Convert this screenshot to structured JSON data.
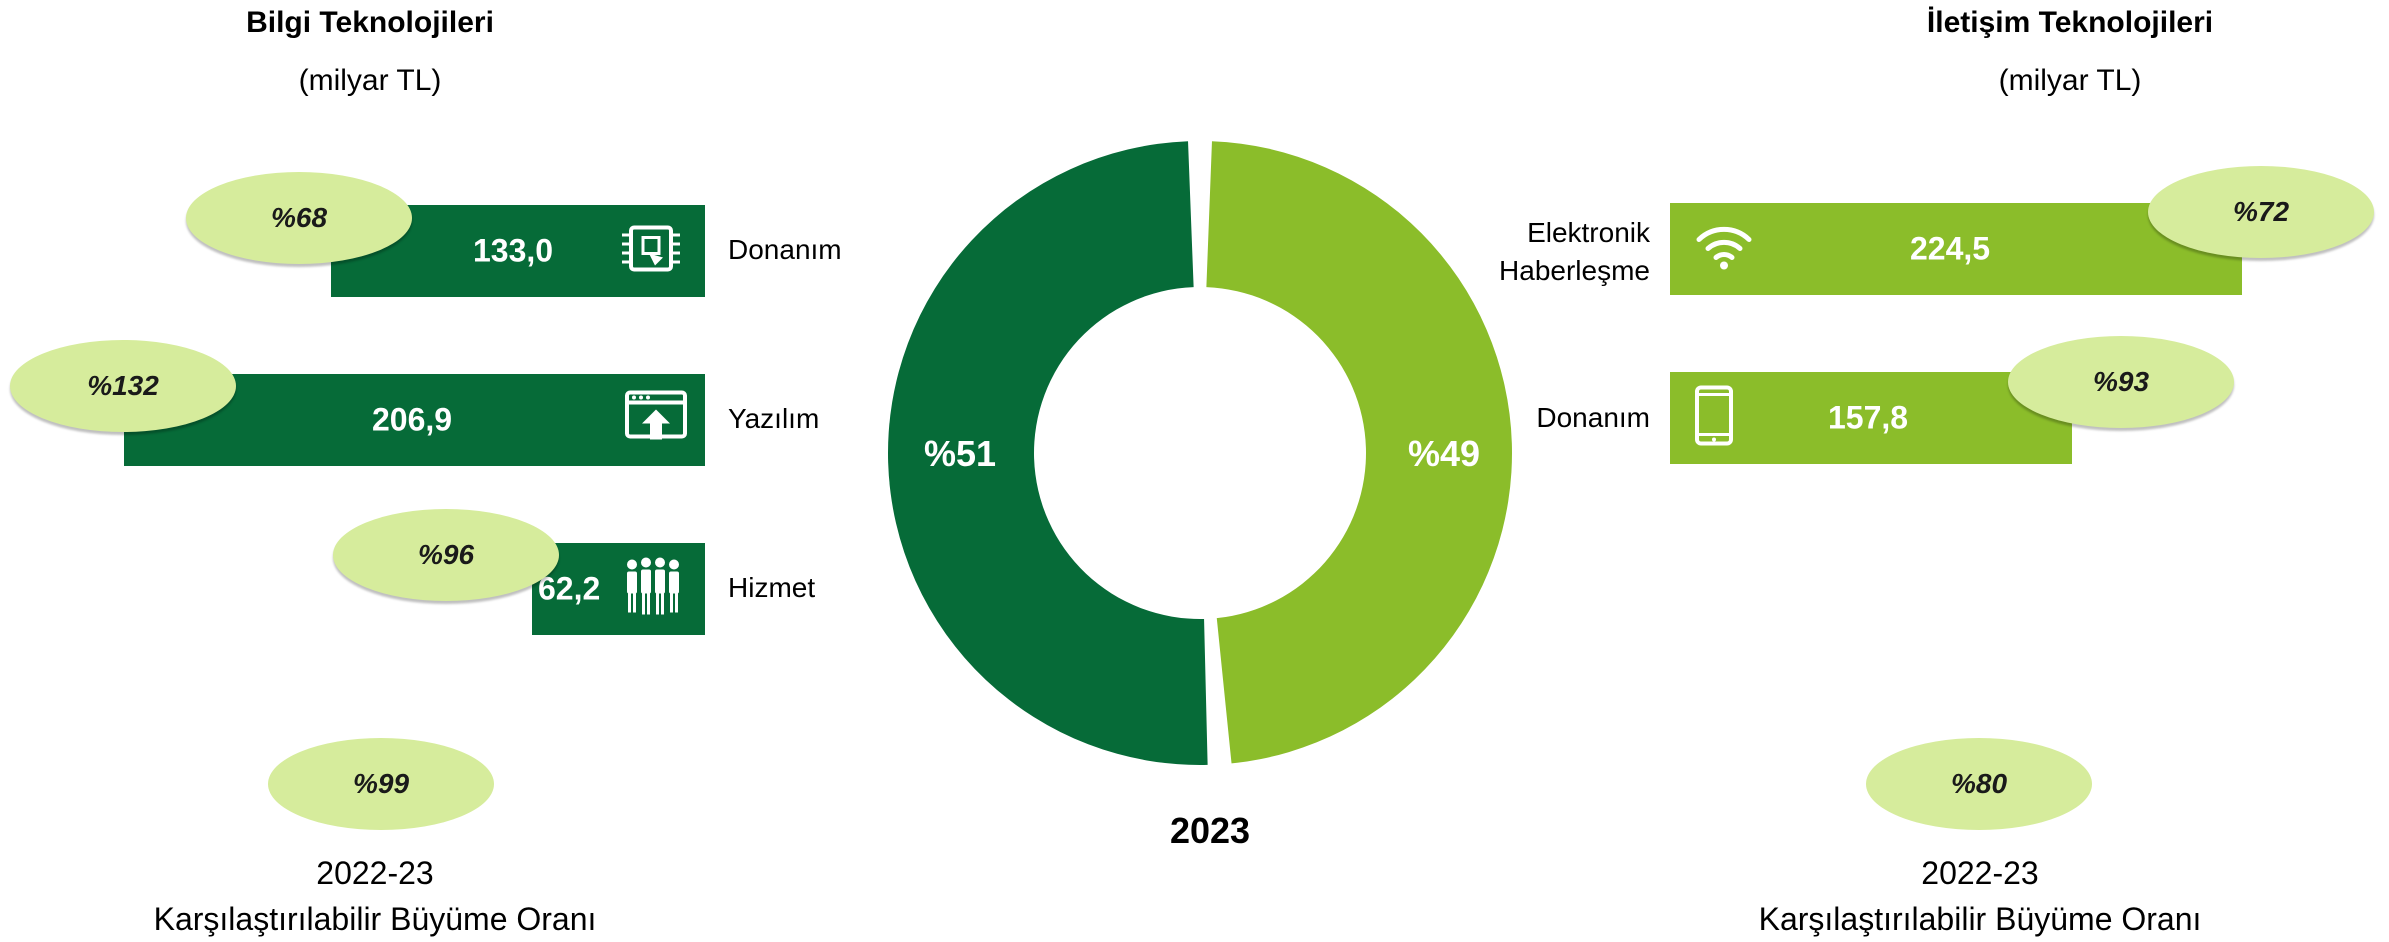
{
  "left": {
    "title": "Bilgi Teknolojileri",
    "unit": "(milyar TL)",
    "cagr_label_years": "2022-23",
    "cagr_label_text": "Karşılaştırılabilir Büyüme Oranı",
    "total_growth": "%99"
  },
  "right": {
    "title": "İletişim Teknolojileri",
    "unit": "(milyar TL)",
    "cagr_label_years": "2022-23",
    "cagr_label_text": "Karşılaştırılabilir Büyüme Oranı",
    "total_growth": "%80"
  },
  "donut_year": "2023",
  "colors": {
    "dark_green": "#066b38",
    "light_green": "#8bbd2a",
    "pill": "#d6ec9c"
  },
  "chart_data": [
    {
      "type": "bar",
      "categories": [
        "Donanım",
        "Yazılım",
        "Hizmet"
      ],
      "values": [
        133.0,
        206.9,
        62.2
      ],
      "value_labels": [
        "133,0",
        "206,9",
        "62,2"
      ],
      "growth_labels": [
        "%68",
        "%132",
        "%96"
      ],
      "icons": [
        "chip-icon",
        "software-upload-icon",
        "people-group-icon"
      ],
      "orientation": "horizontal-leftward",
      "color": "#066b38"
    },
    {
      "type": "bar",
      "categories": [
        "Elektronik Haberleşme",
        "Donanım"
      ],
      "category_lines": [
        [
          "Elektronik",
          "Haberleşme"
        ],
        [
          "Donanım"
        ]
      ],
      "values": [
        224.5,
        157.8
      ],
      "value_labels": [
        "224,5",
        "157,8"
      ],
      "growth_labels": [
        "%72",
        "%93"
      ],
      "icons": [
        "wifi-icon",
        "smartphone-icon"
      ],
      "orientation": "horizontal",
      "color": "#8bbd2a"
    },
    {
      "type": "pie",
      "style": "donut",
      "title": "2023",
      "slices": [
        {
          "label": "%51",
          "value": 51,
          "color": "#066b38"
        },
        {
          "label": "%49",
          "value": 49,
          "color": "#8bbd2a"
        }
      ]
    }
  ]
}
